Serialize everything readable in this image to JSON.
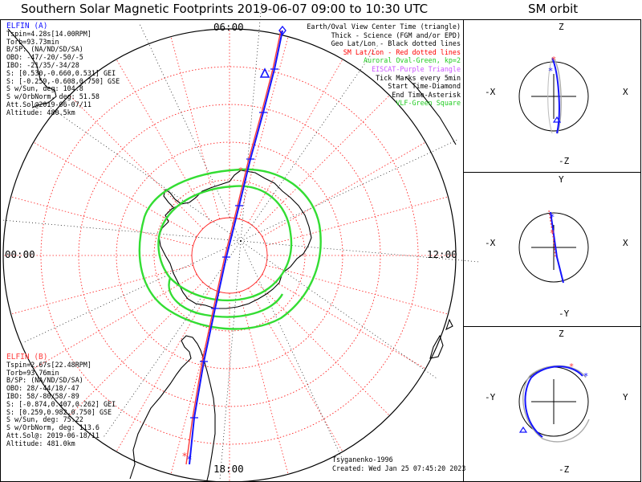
{
  "title": "Southern Solar Magnetic Footprints 2019-06-07 09:00 to 10:30 UTC",
  "orbit_panel_title": "SM orbit",
  "hour_labels": {
    "top": "06:00",
    "left": "00:00",
    "right": "12:00",
    "bottom": "18:00"
  },
  "elfin_a": {
    "name": "ELFIN (A)",
    "color": "#1010ff",
    "lines": [
      "Tspin=4.28s[14.00RPM]",
      "Torb=93.73min",
      "B/SP: (NA/ND/SD/SA)",
      "OBO: -47/-20/-50/-5",
      "IBO: -21/35/-34/28",
      "S: [0.530,-0.660,0.531] GEI",
      "S: [-0.259,-0.608,0.750] GSE",
      "S w/Sun, deg: 104.8",
      "S w/OrbNorm, deg: 51.58",
      "Att.Sol@2019-06-07/11",
      "Altitude: 480.5km"
    ]
  },
  "elfin_b": {
    "name": "ELFIN (B)",
    "color": "#ff3b3b",
    "lines": [
      "Tspin=2.67s[22.48RPM]",
      "Torb=93.76min",
      "B/SP: (NA/ND/SD/SA)",
      "OBO: 28/-44/18/-47",
      "IBO: 58/-80/58/-89",
      "S: [-0.874,0.407,0.262] GEI",
      "S: [0.259,0.982,0.750] GSE",
      "S w/Sun, deg: 75.22",
      "S w/OrbNorm, deg: 113.6",
      "Att.Sol@: 2019-06-18/11",
      "Altitude: 481.0km"
    ]
  },
  "legend": [
    {
      "text": "Earth/Oval View Center Time (triangle)",
      "color": "#000000"
    },
    {
      "text": "Thick - Science (FGM and/or EPD)",
      "color": "#000000"
    },
    {
      "text": "Geo Lat/Lon - Black dotted lines",
      "color": "#000000"
    },
    {
      "text": "SM Lat/Lon - Red dotted lines",
      "color": "#ff0000"
    },
    {
      "text": "Auroral Oval-Green, kp=2",
      "color": "#22cc22"
    },
    {
      "text": "EISCAT-Purple Triangle",
      "color": "#cc55ff"
    },
    {
      "text": "Tick Marks every 5min",
      "color": "#000000"
    },
    {
      "text": "Start Time-Diamond",
      "color": "#000000"
    },
    {
      "text": "End Time-Asterisk",
      "color": "#000000"
    },
    {
      "text": "VLF-Green Square",
      "color": "#22cc22"
    }
  ],
  "footer": {
    "credit": "Tsyganenko-1996",
    "created": "Created: Wed Jan 25 07:45:20 2023"
  },
  "orbit_panels": [
    {
      "top": "Z",
      "bottom": "-Z",
      "left": "-X",
      "right": "X"
    },
    {
      "top": "Y",
      "bottom": "-Y",
      "left": "-X",
      "right": "X"
    },
    {
      "top": "Z",
      "bottom": "-Z",
      "left": "-Y",
      "right": "Y"
    }
  ],
  "chart_data": {
    "type": "polar_map",
    "projection": "southern SM polar",
    "title": "Southern Solar Magnetic Footprints 2019-06-07 09:00 to 10:30 UTC",
    "mlt_labels": [
      "00:00",
      "06:00",
      "12:00",
      "18:00"
    ],
    "auroral_oval_kp": 2,
    "tick_interval_min": 5,
    "series": [
      {
        "name": "ELFIN (A)",
        "color": "#1010ff"
      },
      {
        "name": "ELFIN (B)",
        "color": "#ff3b3b"
      }
    ]
  }
}
